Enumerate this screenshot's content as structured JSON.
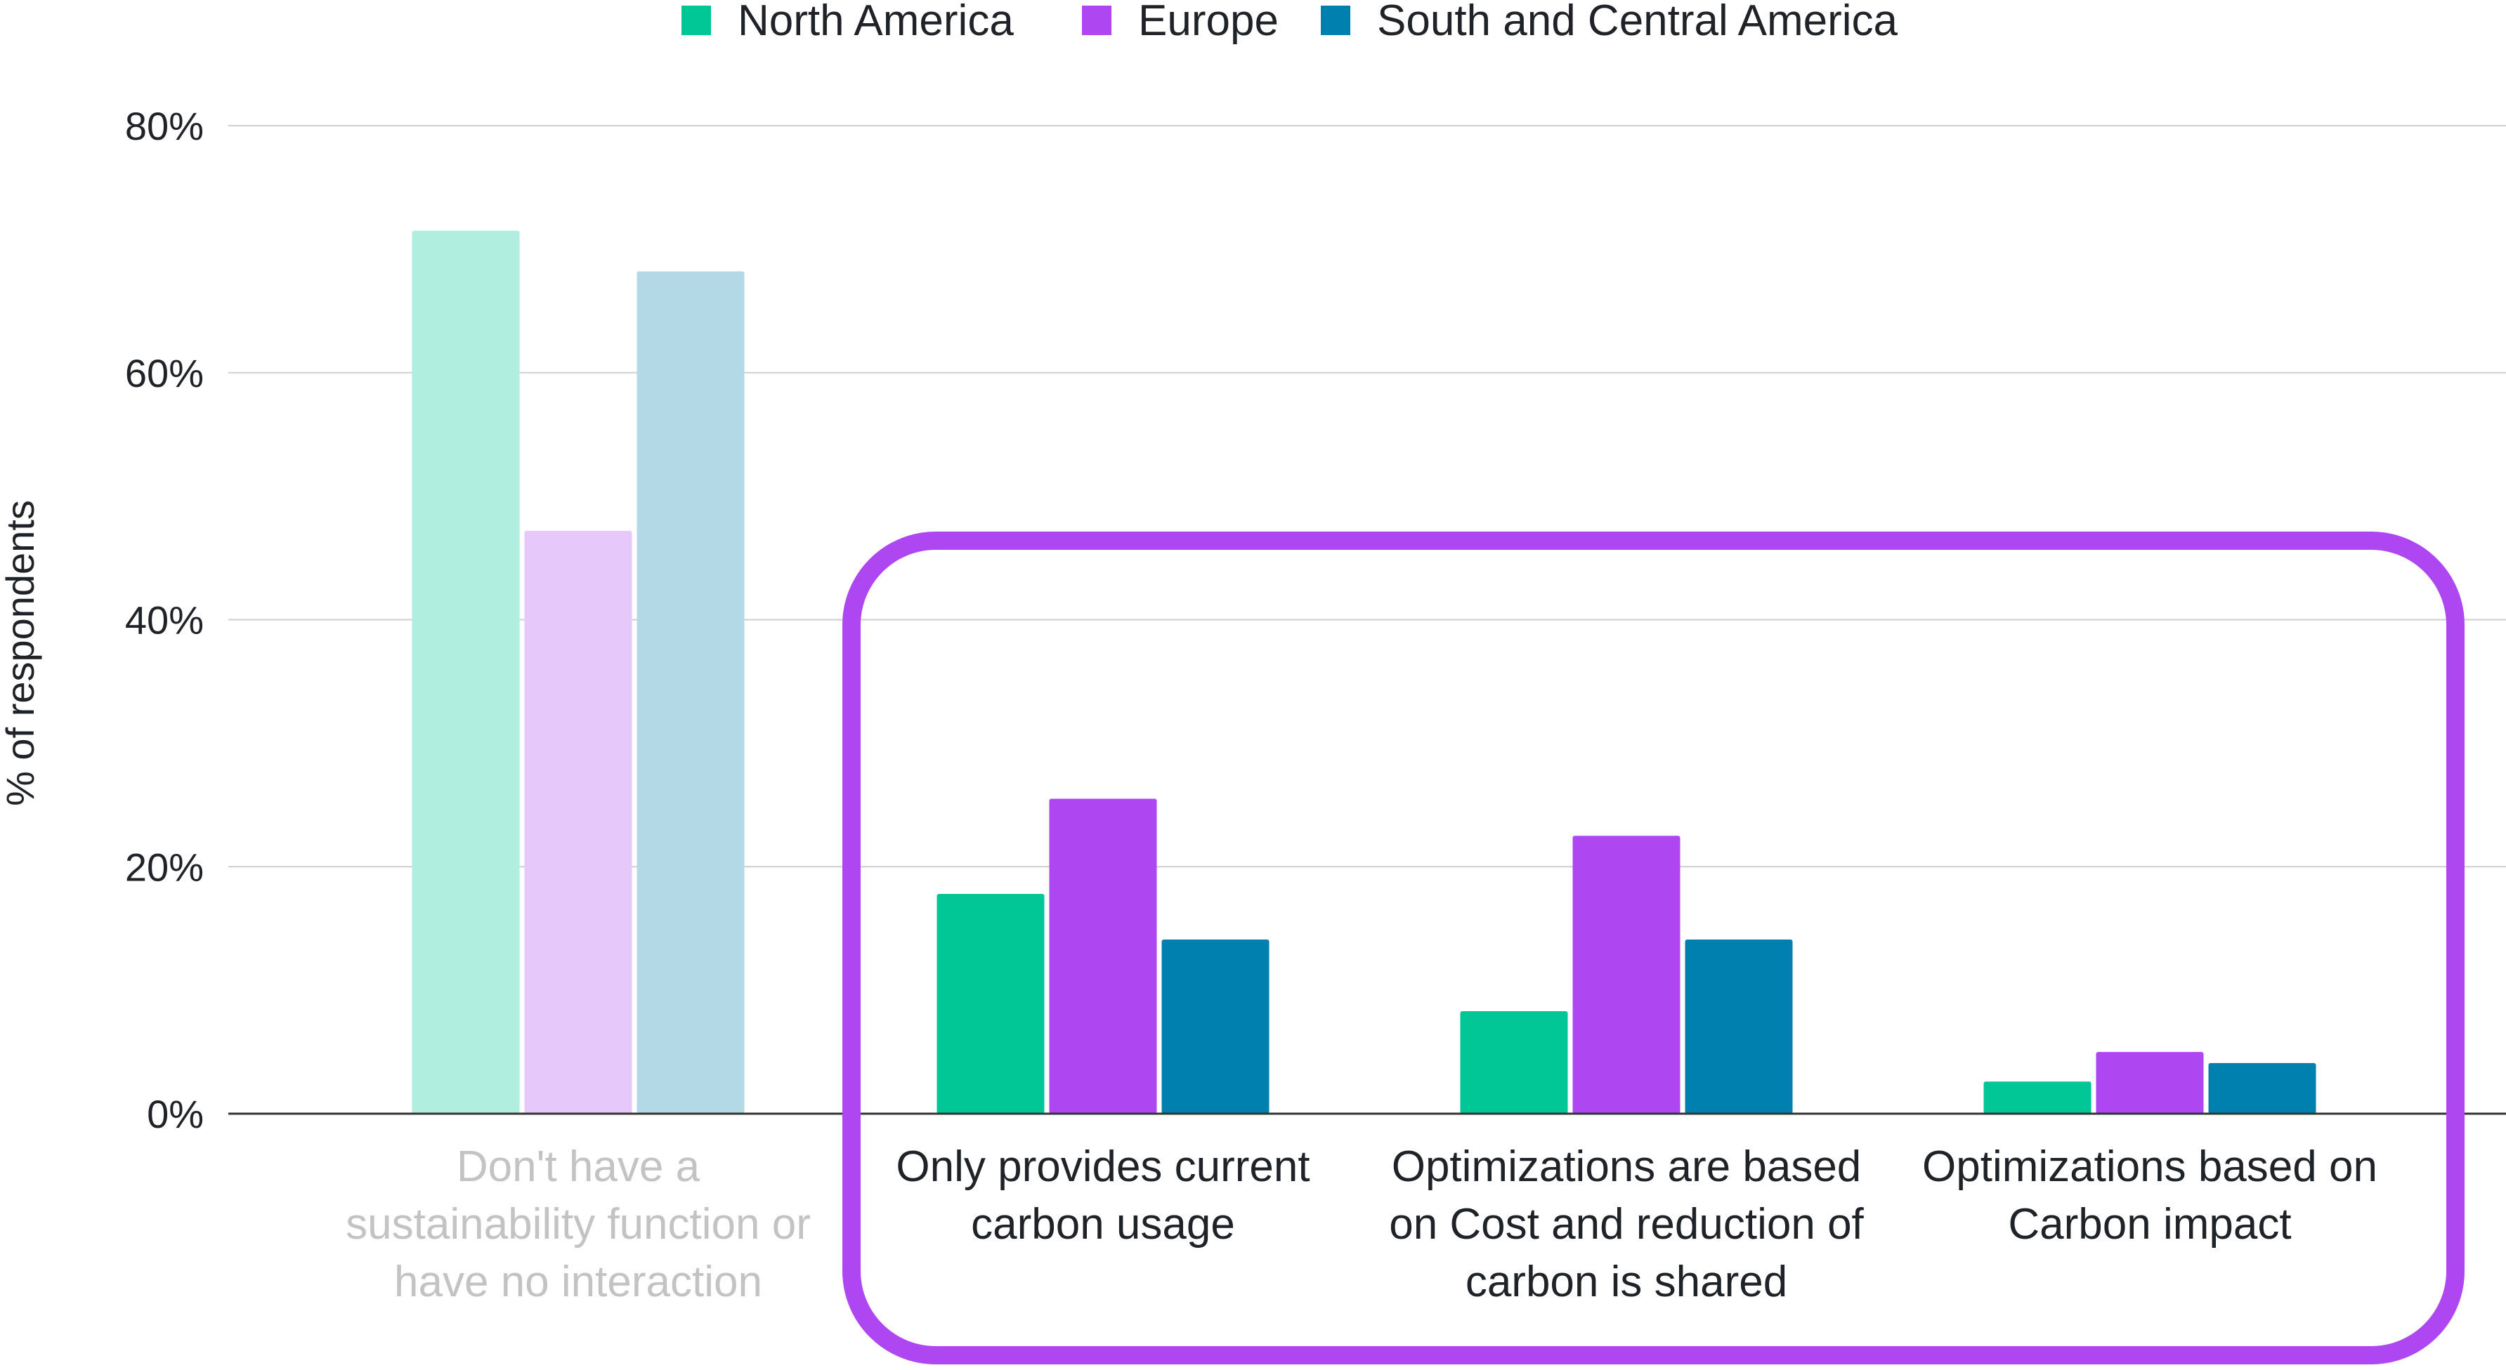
{
  "chart_data": {
    "type": "bar",
    "ylabel": "% of respondents",
    "ylim": [
      0,
      80
    ],
    "yticks": [
      "0%",
      "20%",
      "40%",
      "60%",
      "80%"
    ],
    "ytick_values": [
      0,
      20,
      40,
      60,
      80
    ],
    "grid": true,
    "legend_position": "top-center",
    "categories": [
      [
        "Don't have a",
        "sustainability function or",
        "have no interaction"
      ],
      [
        "Only provides current",
        "carbon usage"
      ],
      [
        "Optimizations are based",
        "on Cost and reduction of",
        "carbon is shared"
      ],
      [
        "Optimizations based on",
        "Carbon impact"
      ]
    ],
    "muted_categories": [
      0
    ],
    "highlighted_categories": [
      1,
      2,
      3
    ],
    "series": [
      {
        "name": "North America",
        "color": "#00c795",
        "muted_color": "#b0eedf",
        "values": [
          71.5,
          17.8,
          8.3,
          2.6
        ]
      },
      {
        "name": "Europe",
        "color": "#ae46f2",
        "muted_color": "#e6c8fb",
        "values": [
          47.2,
          25.5,
          22.5,
          5.0
        ]
      },
      {
        "name": "South and Central America",
        "color": "#0080ae",
        "muted_color": "#b3d8e6",
        "values": [
          68.2,
          14.1,
          14.1,
          4.1
        ]
      }
    ],
    "highlight_color": "#ae46f2"
  }
}
